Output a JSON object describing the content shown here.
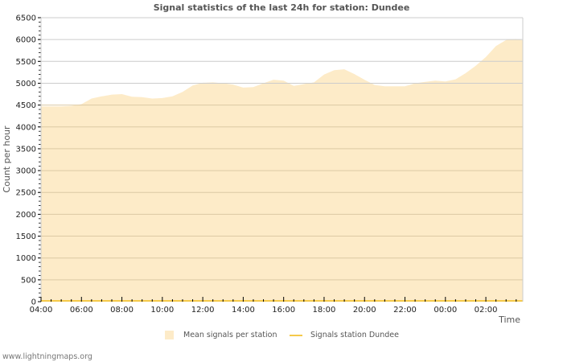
{
  "chart_data": {
    "type": "area",
    "title": "Signal statistics of the last 24h for station: Dundee",
    "xlabel": "Time",
    "ylabel": "Count per hour",
    "ylim": [
      0,
      6500
    ],
    "yticks": [
      0,
      500,
      1000,
      1500,
      2000,
      2500,
      3000,
      3500,
      4000,
      4500,
      5000,
      5500,
      6000,
      6500
    ],
    "xtick_labels": [
      "04:00",
      "06:00",
      "08:00",
      "10:00",
      "12:00",
      "14:00",
      "16:00",
      "18:00",
      "20:00",
      "22:00",
      "00:00",
      "02:00"
    ],
    "grid": true,
    "legend_position": "bottom",
    "x": [
      "04:00",
      "04:30",
      "05:00",
      "05:30",
      "06:00",
      "06:30",
      "07:00",
      "07:30",
      "08:00",
      "08:30",
      "09:00",
      "09:30",
      "10:00",
      "10:30",
      "11:00",
      "11:30",
      "12:00",
      "12:30",
      "13:00",
      "13:30",
      "14:00",
      "14:30",
      "15:00",
      "15:30",
      "16:00",
      "16:30",
      "17:00",
      "17:30",
      "18:00",
      "18:30",
      "19:00",
      "19:30",
      "20:00",
      "20:30",
      "21:00",
      "21:30",
      "22:00",
      "22:30",
      "23:00",
      "23:30",
      "00:00",
      "00:30",
      "01:00",
      "01:30",
      "02:00",
      "02:30",
      "03:00",
      "03:30",
      "03:50"
    ],
    "series": [
      {
        "name": "Mean signals per station",
        "style": "area",
        "color": "#fdebc8",
        "values": [
          4470,
          4470,
          4470,
          4480,
          4520,
          4650,
          4700,
          4740,
          4750,
          4690,
          4680,
          4650,
          4660,
          4700,
          4800,
          4950,
          5010,
          5020,
          5000,
          4970,
          4900,
          4910,
          5000,
          5080,
          5060,
          4940,
          4980,
          5020,
          5200,
          5300,
          5320,
          5210,
          5080,
          4960,
          4930,
          4930,
          4930,
          5000,
          5030,
          5060,
          5040,
          5090,
          5230,
          5400,
          5600,
          5850,
          5990,
          6010,
          5980
        ]
      },
      {
        "name": "Signals station Dundee",
        "style": "line",
        "color": "#f5c94a",
        "values": [
          0,
          0,
          0,
          0,
          0,
          0,
          0,
          0,
          0,
          0,
          0,
          0,
          0,
          0,
          0,
          0,
          0,
          0,
          0,
          0,
          0,
          0,
          0,
          0,
          0,
          0,
          0,
          0,
          0,
          0,
          0,
          0,
          0,
          0,
          0,
          0,
          0,
          0,
          0,
          0,
          0,
          0,
          0,
          0,
          0,
          0,
          0,
          0,
          0
        ]
      }
    ]
  },
  "legend": {
    "area_label": "Mean signals per station",
    "line_label": "Signals station Dundee"
  },
  "footer": "www.lightningmaps.org"
}
